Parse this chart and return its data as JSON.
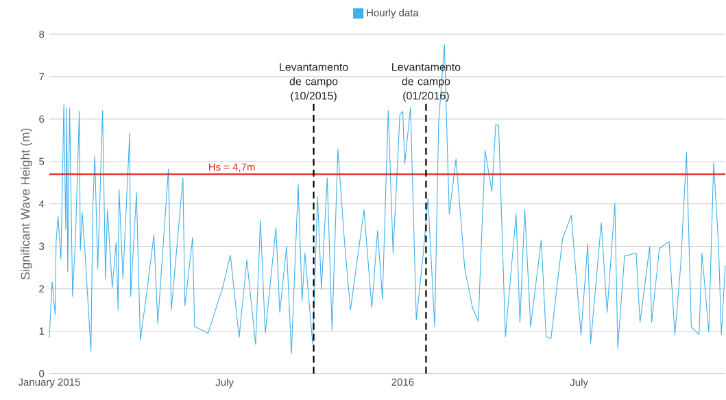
{
  "chart_data": {
    "type": "line",
    "ylabel": "Significant Wave Height (m)",
    "xlim": [
      "2015-01-01",
      "2016-11-29"
    ],
    "xticks": [
      {
        "value": "2015-01-01",
        "label": "January 2015"
      },
      {
        "value": "2015-07-01",
        "label": "July"
      },
      {
        "value": "2016-01-01",
        "label": "2016"
      },
      {
        "value": "2016-07-01",
        "label": "July"
      }
    ],
    "ylim": [
      0,
      8
    ],
    "yticks": [
      0,
      1,
      2,
      3,
      4,
      5,
      6,
      7,
      8
    ],
    "grid": "y",
    "legend": "top",
    "marker": "none",
    "line_style": "solid",
    "ref_lines": [
      {
        "axis": "y",
        "value": 4.7,
        "label": "Hs = 4,7m",
        "color": "#e8231a",
        "line_style": "solid"
      },
      {
        "axis": "x",
        "value": "2015-10-01",
        "label": "Levantamento de campo (10/2015)",
        "color": "#000000",
        "line_style": "dashed"
      },
      {
        "axis": "x",
        "value": "2016-01-25",
        "label": "Levantamento de campo (01/2016)",
        "color": "#000000",
        "line_style": "dashed"
      }
    ],
    "series": [
      {
        "name": "Hourly data",
        "color": "#3fb0ea",
        "x": [
          "2015-01-01",
          "2015-01-04",
          "2015-01-07",
          "2015-01-08",
          "2015-01-10",
          "2015-01-13",
          "2015-01-16",
          "2015-01-18",
          "2015-01-19",
          "2015-01-20",
          "2015-01-22",
          "2015-01-25",
          "2015-01-28",
          "2015-02-01",
          "2015-02-02",
          "2015-02-04",
          "2015-02-07",
          "2015-02-13",
          "2015-02-15",
          "2015-02-17",
          "2015-02-20",
          "2015-02-25",
          "2015-02-28",
          "2015-03-02",
          "2015-03-07",
          "2015-03-11",
          "2015-03-13",
          "2015-03-14",
          "2015-03-18",
          "2015-03-25",
          "2015-03-26",
          "2015-04-01",
          "2015-04-05",
          "2015-04-12",
          "2015-04-19",
          "2015-04-23",
          "2015-05-04",
          "2015-05-07",
          "2015-05-19",
          "2015-05-21",
          "2015-05-29",
          "2015-05-31",
          "2015-06-14",
          "2015-06-29",
          "2015-07-07",
          "2015-07-16",
          "2015-07-24",
          "2015-08-02",
          "2015-08-07",
          "2015-08-12",
          "2015-08-23",
          "2015-08-27",
          "2015-09-03",
          "2015-09-08",
          "2015-09-15",
          "2015-09-19",
          "2015-09-22",
          "2015-09-30",
          "2015-10-05",
          "2015-10-09",
          "2015-10-15",
          "2015-10-20",
          "2015-10-26",
          "2015-11-02",
          "2015-11-08",
          "2015-11-22",
          "2015-11-30",
          "2015-12-06",
          "2015-12-11",
          "2015-12-17",
          "2015-12-22",
          "2015-12-29",
          "2016-01-01",
          "2016-01-03",
          "2016-01-09",
          "2016-01-15",
          "2016-01-22",
          "2016-01-27",
          "2016-02-03",
          "2016-02-07",
          "2016-02-13",
          "2016-02-18",
          "2016-02-25",
          "2016-03-05",
          "2016-03-13",
          "2016-03-19",
          "2016-03-26",
          "2016-04-02",
          "2016-04-06",
          "2016-04-09",
          "2016-04-12",
          "2016-04-16",
          "2016-04-27",
          "2016-05-01",
          "2016-05-06",
          "2016-05-12",
          "2016-05-23",
          "2016-05-28",
          "2016-06-02",
          "2016-06-14",
          "2016-06-23",
          "2016-07-03",
          "2016-07-10",
          "2016-07-13",
          "2016-07-24",
          "2016-07-30",
          "2016-08-07",
          "2016-08-10",
          "2016-08-17",
          "2016-08-29",
          "2016-09-02",
          "2016-09-12",
          "2016-09-14",
          "2016-09-22",
          "2016-10-02",
          "2016-10-08",
          "2016-10-14",
          "2016-10-20",
          "2016-10-25",
          "2016-11-02",
          "2016-11-05",
          "2016-11-12",
          "2016-11-17",
          "2016-11-22",
          "2016-11-25",
          "2016-11-29"
        ],
        "values": [
          0.85,
          2.16,
          1.39,
          3.1,
          3.7,
          2.7,
          6.34,
          3.4,
          6.27,
          2.4,
          6.26,
          1.82,
          3.16,
          6.18,
          2.9,
          3.8,
          2.8,
          0.53,
          3.97,
          5.13,
          2.47,
          6.2,
          2.24,
          3.86,
          2.03,
          3.1,
          1.5,
          4.34,
          2.24,
          5.66,
          1.82,
          4.26,
          0.79,
          1.98,
          3.27,
          1.18,
          4.82,
          1.5,
          4.61,
          1.6,
          3.21,
          1.11,
          0.95,
          2.03,
          2.79,
          0.85,
          2.68,
          0.69,
          3.61,
          0.95,
          3.44,
          1.44,
          3.0,
          0.47,
          4.45,
          1.71,
          2.84,
          0.69,
          4.18,
          1.98,
          4.61,
          1.02,
          5.29,
          3.05,
          1.5,
          3.86,
          1.55,
          3.37,
          1.76,
          6.2,
          2.84,
          6.1,
          6.18,
          4.94,
          6.27,
          1.27,
          2.79,
          4.13,
          1.11,
          5.9,
          7.76,
          3.76,
          5.06,
          2.47,
          1.55,
          1.23,
          5.26,
          4.29,
          5.87,
          5.85,
          3.73,
          0.87,
          3.76,
          1.21,
          3.87,
          1.1,
          3.15,
          0.87,
          0.82,
          3.18,
          3.73,
          0.92,
          3.06,
          0.71,
          3.56,
          1.44,
          4.02,
          0.6,
          2.77,
          2.84,
          1.21,
          3.0,
          1.21,
          2.95,
          3.11,
          0.92,
          2.55,
          5.21,
          1.1,
          0.92,
          2.84,
          0.98,
          4.97,
          3.06,
          0.92,
          2.55
        ]
      }
    ]
  }
}
